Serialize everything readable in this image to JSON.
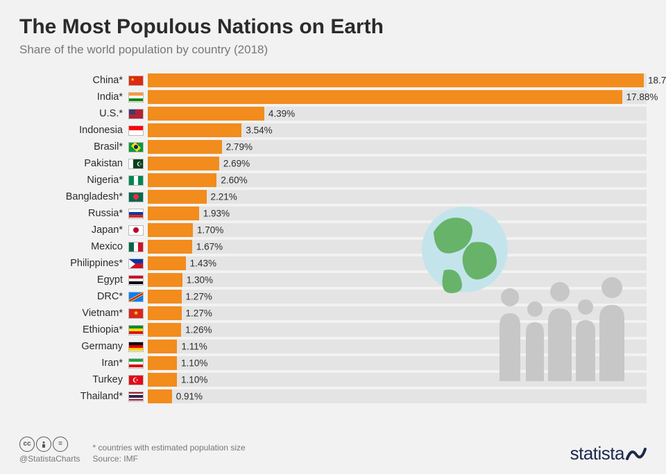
{
  "title": "The Most Populous Nations on Earth",
  "subtitle": "Share of the world population by country (2018)",
  "chart": {
    "type": "bar-horizontal",
    "bar_color": "#f28c1d",
    "track_color": "#e4e4e4",
    "value_suffix": "%",
    "value_fontsize": 13.5,
    "label_fontsize": 14.5,
    "max_value": 18.7,
    "rows": [
      {
        "label": "China*",
        "value": 18.7,
        "flag": "cn"
      },
      {
        "label": "India*",
        "value": 17.88,
        "flag": "in"
      },
      {
        "label": "U.S.*",
        "value": 4.39,
        "flag": "us"
      },
      {
        "label": "Indonesia",
        "value": 3.54,
        "flag": "id"
      },
      {
        "label": "Brasil*",
        "value": 2.79,
        "flag": "br"
      },
      {
        "label": "Pakistan",
        "value": 2.69,
        "flag": "pk"
      },
      {
        "label": "Nigeria*",
        "value": 2.6,
        "flag": "ng"
      },
      {
        "label": "Bangladesh*",
        "value": 2.21,
        "flag": "bd"
      },
      {
        "label": "Russia*",
        "value": 1.93,
        "flag": "ru"
      },
      {
        "label": "Japan*",
        "value": 1.7,
        "flag": "jp"
      },
      {
        "label": "Mexico",
        "value": 1.67,
        "flag": "mx"
      },
      {
        "label": "Philippines*",
        "value": 1.43,
        "flag": "ph"
      },
      {
        "label": "Egypt",
        "value": 1.3,
        "flag": "eg"
      },
      {
        "label": "DRC*",
        "value": 1.27,
        "flag": "cd"
      },
      {
        "label": "Vietnam*",
        "value": 1.27,
        "flag": "vn"
      },
      {
        "label": "Ethiopia*",
        "value": 1.26,
        "flag": "et"
      },
      {
        "label": "Germany",
        "value": 1.11,
        "flag": "de"
      },
      {
        "label": "Iran*",
        "value": 1.1,
        "flag": "ir"
      },
      {
        "label": "Turkey",
        "value": 1.1,
        "flag": "tr"
      },
      {
        "label": "Thailand*",
        "value": 0.91,
        "flag": "th"
      }
    ]
  },
  "flags": {
    "cn": {
      "bg": "#de2910"
    },
    "in": {
      "stripes_h": [
        "#ff9933",
        "#ffffff",
        "#138808"
      ]
    },
    "us": {
      "bg": "#b22234",
      "canton": "#3c3b6e"
    },
    "id": {
      "stripes_h": [
        "#ff0000",
        "#ffffff"
      ]
    },
    "br": {
      "bg": "#009b3a"
    },
    "pk": {
      "bg": "#01411c",
      "left_band": "#ffffff"
    },
    "ng": {
      "stripes_v": [
        "#008751",
        "#ffffff",
        "#008751"
      ]
    },
    "bd": {
      "bg": "#006a4e",
      "disc": "#f42a41"
    },
    "ru": {
      "stripes_h": [
        "#ffffff",
        "#0039a6",
        "#d52b1e"
      ]
    },
    "jp": {
      "bg": "#ffffff",
      "disc": "#bc002d"
    },
    "mx": {
      "stripes_v": [
        "#006847",
        "#ffffff",
        "#ce1126"
      ]
    },
    "ph": {
      "bg": "#0038a8",
      "bottom": "#ce1126",
      "tri": "#ffffff"
    },
    "eg": {
      "stripes_h": [
        "#ce1126",
        "#ffffff",
        "#000000"
      ]
    },
    "cd": {
      "bg": "#007fff"
    },
    "vn": {
      "bg": "#da251d"
    },
    "et": {
      "stripes_h": [
        "#078930",
        "#fcdd09",
        "#da121a"
      ]
    },
    "de": {
      "stripes_h": [
        "#000000",
        "#dd0000",
        "#ffce00"
      ]
    },
    "ir": {
      "stripes_h": [
        "#239f40",
        "#ffffff",
        "#da0000"
      ]
    },
    "tr": {
      "bg": "#e30a17"
    },
    "th": {
      "stripes_h5": [
        "#a51931",
        "#f4f5f8",
        "#2d2a4a",
        "#f4f5f8",
        "#a51931"
      ]
    }
  },
  "illustration": {
    "globe_fill": "#67b36a",
    "globe_ocean": "#c4e4ec",
    "people_fill": "#c7c7c7"
  },
  "footer": {
    "handle": "@StatistaCharts",
    "note": "* countries with estimated population size",
    "source": "Source: IMF",
    "brand": "statista",
    "brand_color": "#1d2a4d"
  }
}
